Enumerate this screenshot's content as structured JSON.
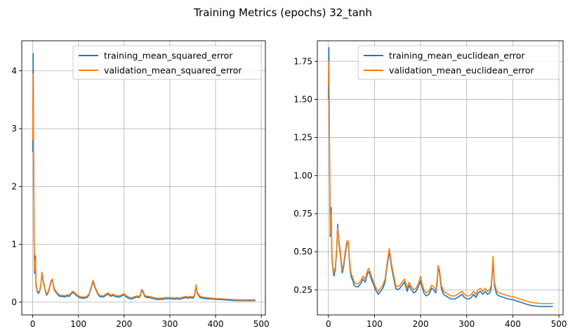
{
  "figure": {
    "title": "Training Metrics (epochs) 32_tanh"
  },
  "colors": {
    "training": "#1f77b4",
    "validation": "#ff7f0e",
    "grid": "#b0b0b0"
  },
  "chart_data": [
    {
      "type": "line",
      "title": "",
      "xlabel": "",
      "ylabel": "",
      "xlim": [
        -24,
        509
      ],
      "ylim": [
        -0.22,
        4.52
      ],
      "xticks": [
        0,
        100,
        200,
        300,
        400,
        500
      ],
      "yticks": [
        0,
        1,
        2,
        3,
        4
      ],
      "ytick_labels": [
        "0",
        "1",
        "2",
        "3",
        "4"
      ],
      "grid": true,
      "legend_position": "top-right",
      "series": [
        {
          "name": "training_mean_squared_error",
          "color": "#1f77b4",
          "x": [
            0,
            1,
            2,
            3,
            4,
            5,
            6,
            7,
            8,
            10,
            12,
            15,
            18,
            20,
            23,
            26,
            28,
            30,
            33,
            36,
            40,
            43,
            46,
            48,
            50,
            53,
            56,
            60,
            65,
            70,
            75,
            80,
            85,
            88,
            92,
            97,
            102,
            108,
            113,
            118,
            123,
            128,
            132,
            135,
            138,
            142,
            146,
            150,
            155,
            160,
            165,
            168,
            171,
            175,
            180,
            185,
            190,
            195,
            200,
            203,
            207,
            212,
            218,
            224,
            228,
            233,
            236,
            238,
            241,
            245,
            250,
            255,
            260,
            265,
            270,
            275,
            280,
            285,
            290,
            295,
            300,
            305,
            310,
            315,
            320,
            325,
            330,
            335,
            340,
            345,
            350,
            353,
            355,
            357,
            360,
            365,
            370,
            380,
            390,
            400,
            410,
            420,
            430,
            440,
            450,
            460,
            470,
            487
          ],
          "values": [
            2.6,
            4.3,
            2.2,
            1.1,
            0.5,
            0.75,
            0.8,
            0.3,
            0.25,
            0.18,
            0.15,
            0.18,
            0.3,
            0.5,
            0.35,
            0.25,
            0.18,
            0.12,
            0.15,
            0.22,
            0.35,
            0.38,
            0.25,
            0.2,
            0.18,
            0.15,
            0.12,
            0.1,
            0.1,
            0.09,
            0.11,
            0.1,
            0.15,
            0.17,
            0.14,
            0.11,
            0.08,
            0.07,
            0.07,
            0.08,
            0.12,
            0.25,
            0.36,
            0.28,
            0.22,
            0.15,
            0.1,
            0.09,
            0.09,
            0.12,
            0.14,
            0.12,
            0.1,
            0.12,
            0.1,
            0.09,
            0.09,
            0.11,
            0.13,
            0.1,
            0.08,
            0.06,
            0.06,
            0.08,
            0.09,
            0.08,
            0.12,
            0.2,
            0.18,
            0.1,
            0.08,
            0.08,
            0.07,
            0.06,
            0.05,
            0.05,
            0.05,
            0.05,
            0.06,
            0.06,
            0.06,
            0.06,
            0.05,
            0.06,
            0.05,
            0.06,
            0.07,
            0.08,
            0.07,
            0.08,
            0.07,
            0.09,
            0.15,
            0.28,
            0.15,
            0.09,
            0.07,
            0.06,
            0.055,
            0.05,
            0.045,
            0.04,
            0.035,
            0.03,
            0.028,
            0.027,
            0.026,
            0.026
          ]
        },
        {
          "name": "validation_mean_squared_error",
          "color": "#ff7f0e",
          "x": [
            0,
            1,
            2,
            3,
            4,
            5,
            6,
            7,
            8,
            10,
            12,
            15,
            18,
            20,
            23,
            26,
            28,
            30,
            33,
            36,
            40,
            43,
            46,
            48,
            50,
            53,
            56,
            60,
            65,
            70,
            75,
            80,
            85,
            88,
            92,
            97,
            102,
            108,
            113,
            118,
            123,
            128,
            132,
            135,
            138,
            142,
            146,
            150,
            155,
            160,
            165,
            168,
            171,
            175,
            180,
            185,
            190,
            195,
            200,
            203,
            207,
            212,
            218,
            224,
            228,
            233,
            236,
            238,
            241,
            245,
            250,
            255,
            260,
            265,
            270,
            275,
            280,
            285,
            290,
            295,
            300,
            305,
            310,
            315,
            320,
            325,
            330,
            335,
            340,
            345,
            350,
            353,
            355,
            357,
            360,
            365,
            370,
            380,
            390,
            400,
            410,
            420,
            430,
            440,
            450,
            460,
            470,
            487
          ],
          "values": [
            2.8,
            3.95,
            2.4,
            1.15,
            0.55,
            0.7,
            0.72,
            0.35,
            0.28,
            0.2,
            0.17,
            0.2,
            0.32,
            0.52,
            0.38,
            0.27,
            0.2,
            0.14,
            0.17,
            0.24,
            0.37,
            0.4,
            0.27,
            0.22,
            0.2,
            0.17,
            0.14,
            0.12,
            0.12,
            0.11,
            0.13,
            0.12,
            0.17,
            0.19,
            0.16,
            0.13,
            0.1,
            0.09,
            0.09,
            0.1,
            0.14,
            0.27,
            0.38,
            0.3,
            0.24,
            0.17,
            0.12,
            0.11,
            0.11,
            0.14,
            0.16,
            0.14,
            0.12,
            0.14,
            0.12,
            0.11,
            0.11,
            0.13,
            0.15,
            0.12,
            0.1,
            0.08,
            0.08,
            0.1,
            0.11,
            0.1,
            0.14,
            0.22,
            0.2,
            0.12,
            0.1,
            0.1,
            0.09,
            0.08,
            0.07,
            0.07,
            0.07,
            0.07,
            0.08,
            0.08,
            0.08,
            0.08,
            0.07,
            0.08,
            0.07,
            0.08,
            0.09,
            0.1,
            0.09,
            0.1,
            0.09,
            0.11,
            0.17,
            0.3,
            0.17,
            0.11,
            0.09,
            0.08,
            0.07,
            0.065,
            0.06,
            0.055,
            0.05,
            0.045,
            0.042,
            0.04,
            0.04,
            0.04
          ]
        }
      ]
    },
    {
      "type": "line",
      "title": "",
      "xlabel": "",
      "ylabel": "",
      "xlim": [
        -24,
        509
      ],
      "ylim": [
        0.085,
        1.885
      ],
      "xticks": [
        0,
        100,
        200,
        300,
        400,
        500
      ],
      "yticks": [
        0.25,
        0.5,
        0.75,
        1.0,
        1.25,
        1.5,
        1.75
      ],
      "ytick_labels": [
        "0.25",
        "0.50",
        "0.75",
        "1.00",
        "1.25",
        "1.50",
        "1.75"
      ],
      "grid": true,
      "legend_position": "top-right",
      "series": [
        {
          "name": "training_mean_euclidean_error",
          "color": "#1f77b4",
          "x": [
            0,
            1,
            2,
            3,
            4,
            5,
            6,
            7,
            8,
            10,
            12,
            15,
            18,
            20,
            23,
            26,
            28,
            30,
            33,
            36,
            40,
            43,
            46,
            48,
            50,
            53,
            56,
            60,
            65,
            70,
            75,
            80,
            85,
            88,
            92,
            97,
            102,
            108,
            113,
            118,
            123,
            128,
            132,
            135,
            138,
            142,
            146,
            150,
            155,
            160,
            165,
            168,
            171,
            175,
            180,
            185,
            190,
            195,
            200,
            203,
            207,
            212,
            218,
            224,
            228,
            233,
            236,
            238,
            241,
            245,
            250,
            255,
            260,
            265,
            270,
            275,
            280,
            285,
            290,
            295,
            300,
            305,
            310,
            315,
            320,
            325,
            330,
            335,
            340,
            345,
            350,
            353,
            355,
            357,
            360,
            365,
            370,
            380,
            390,
            400,
            410,
            420,
            430,
            440,
            450,
            460,
            470,
            487
          ],
          "values": [
            1.5,
            1.84,
            1.3,
            0.95,
            0.6,
            0.75,
            0.79,
            0.55,
            0.45,
            0.38,
            0.34,
            0.38,
            0.5,
            0.68,
            0.55,
            0.48,
            0.42,
            0.36,
            0.4,
            0.47,
            0.55,
            0.56,
            0.42,
            0.36,
            0.33,
            0.31,
            0.28,
            0.27,
            0.27,
            0.29,
            0.32,
            0.3,
            0.36,
            0.37,
            0.33,
            0.29,
            0.25,
            0.22,
            0.24,
            0.26,
            0.3,
            0.42,
            0.5,
            0.44,
            0.38,
            0.32,
            0.26,
            0.25,
            0.26,
            0.28,
            0.3,
            0.27,
            0.24,
            0.28,
            0.25,
            0.23,
            0.24,
            0.27,
            0.31,
            0.27,
            0.23,
            0.21,
            0.22,
            0.26,
            0.25,
            0.23,
            0.3,
            0.4,
            0.36,
            0.26,
            0.22,
            0.21,
            0.2,
            0.19,
            0.19,
            0.19,
            0.2,
            0.21,
            0.22,
            0.2,
            0.19,
            0.19,
            0.2,
            0.22,
            0.2,
            0.23,
            0.24,
            0.22,
            0.24,
            0.22,
            0.23,
            0.26,
            0.33,
            0.45,
            0.28,
            0.22,
            0.21,
            0.2,
            0.19,
            0.185,
            0.175,
            0.165,
            0.155,
            0.147,
            0.143,
            0.14,
            0.14,
            0.14
          ]
        },
        {
          "name": "validation_mean_euclidean_error",
          "color": "#ff7f0e",
          "x": [
            0,
            1,
            2,
            3,
            4,
            5,
            6,
            7,
            8,
            10,
            12,
            15,
            18,
            20,
            23,
            26,
            28,
            30,
            33,
            36,
            40,
            43,
            46,
            48,
            50,
            53,
            56,
            60,
            65,
            70,
            75,
            80,
            85,
            88,
            92,
            97,
            102,
            108,
            113,
            118,
            123,
            128,
            132,
            135,
            138,
            142,
            146,
            150,
            155,
            160,
            165,
            168,
            171,
            175,
            180,
            185,
            190,
            195,
            200,
            203,
            207,
            212,
            218,
            224,
            228,
            233,
            236,
            238,
            241,
            245,
            250,
            255,
            260,
            265,
            270,
            275,
            280,
            285,
            290,
            295,
            300,
            305,
            310,
            315,
            320,
            325,
            330,
            335,
            340,
            345,
            350,
            353,
            355,
            357,
            360,
            365,
            370,
            380,
            390,
            400,
            410,
            420,
            430,
            440,
            450,
            460,
            470,
            487
          ],
          "values": [
            1.6,
            1.75,
            1.35,
            0.98,
            0.62,
            0.72,
            0.75,
            0.57,
            0.47,
            0.4,
            0.36,
            0.4,
            0.52,
            0.66,
            0.57,
            0.5,
            0.44,
            0.38,
            0.42,
            0.49,
            0.57,
            0.57,
            0.44,
            0.38,
            0.35,
            0.33,
            0.3,
            0.29,
            0.29,
            0.31,
            0.34,
            0.32,
            0.38,
            0.39,
            0.35,
            0.31,
            0.27,
            0.24,
            0.26,
            0.28,
            0.32,
            0.44,
            0.52,
            0.46,
            0.4,
            0.34,
            0.28,
            0.27,
            0.28,
            0.3,
            0.32,
            0.29,
            0.26,
            0.3,
            0.27,
            0.25,
            0.26,
            0.29,
            0.34,
            0.29,
            0.25,
            0.23,
            0.24,
            0.28,
            0.27,
            0.25,
            0.32,
            0.41,
            0.38,
            0.28,
            0.24,
            0.23,
            0.22,
            0.21,
            0.21,
            0.21,
            0.22,
            0.23,
            0.24,
            0.22,
            0.21,
            0.21,
            0.22,
            0.24,
            0.22,
            0.25,
            0.26,
            0.24,
            0.26,
            0.24,
            0.25,
            0.28,
            0.35,
            0.47,
            0.3,
            0.24,
            0.23,
            0.22,
            0.21,
            0.205,
            0.195,
            0.185,
            0.175,
            0.167,
            0.163,
            0.16,
            0.16,
            0.16
          ]
        }
      ]
    }
  ]
}
